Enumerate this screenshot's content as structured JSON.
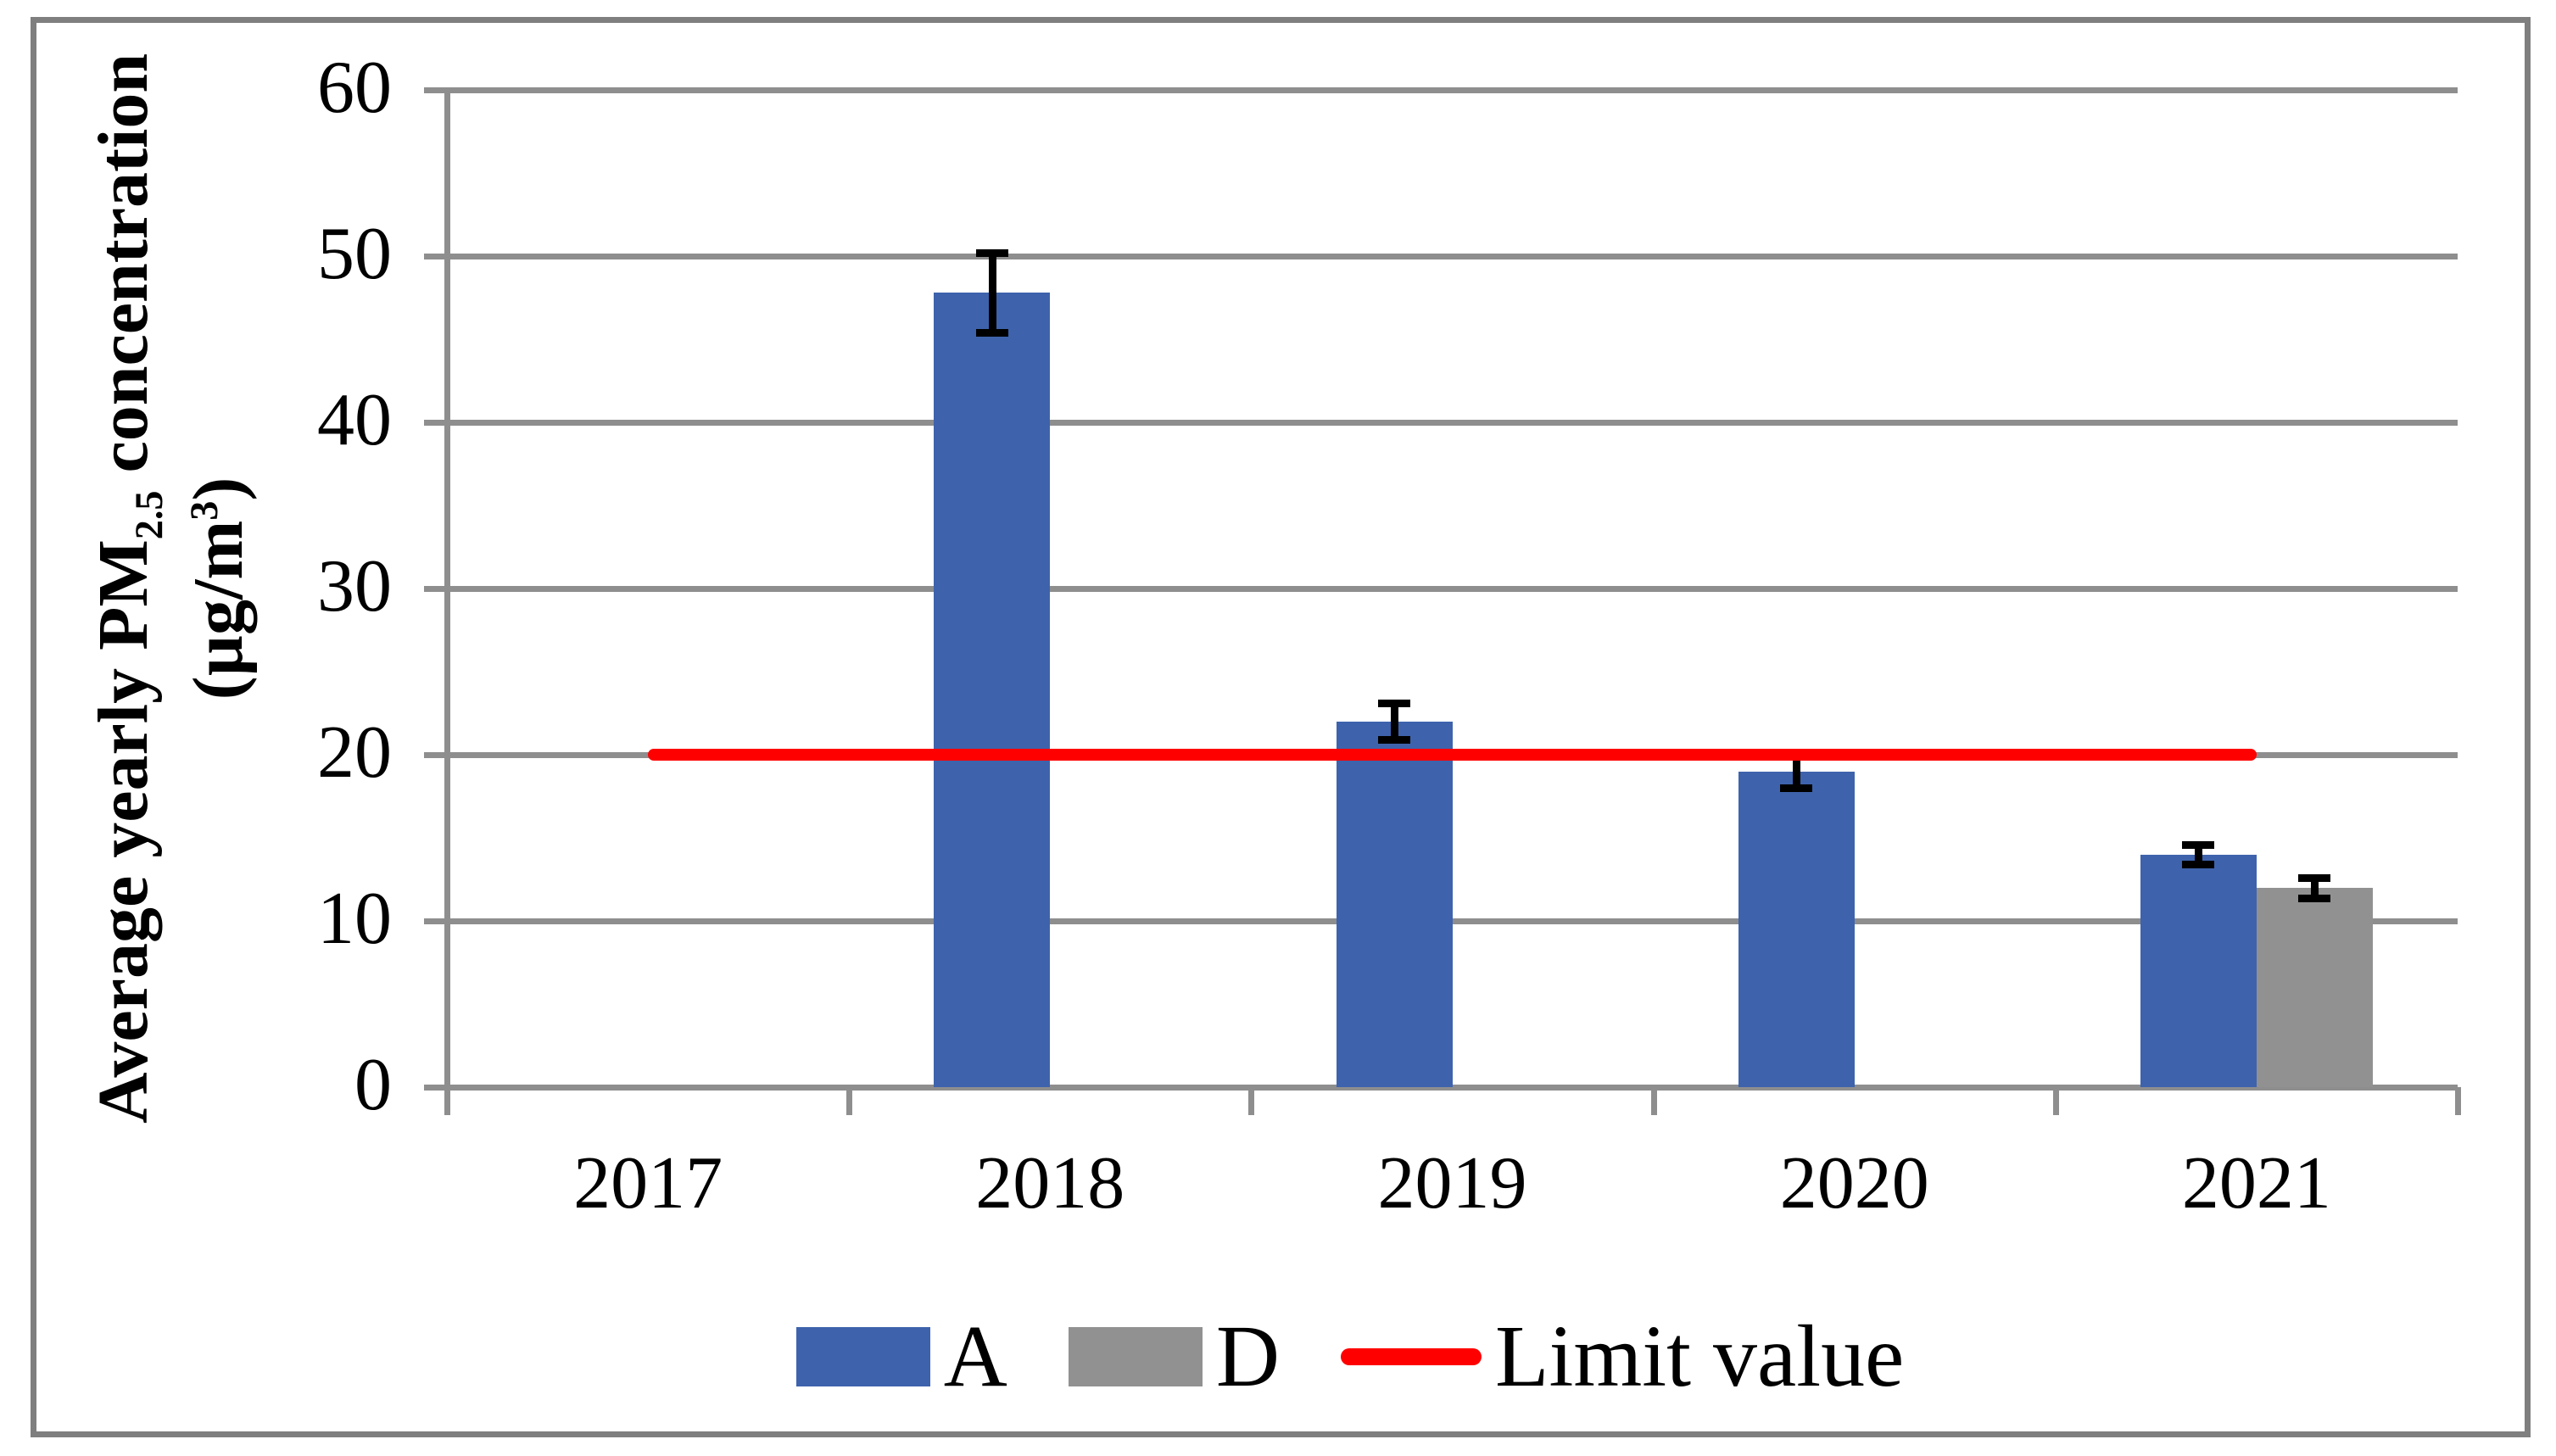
{
  "figure": {
    "y_axis": {
      "title": {
        "pre": "Average yearly PM",
        "sub": "2.5",
        "mid": " concentration",
        "unit_pre": "(µg/m",
        "sup": "3",
        "unit_post": ")"
      }
    },
    "legend": [
      {
        "label": "A",
        "swatch": "#3E63AC",
        "type": "box"
      },
      {
        "label": "D",
        "swatch": "#919191",
        "type": "box"
      },
      {
        "label": "Limit value",
        "swatch": "#FF0000",
        "type": "line"
      }
    ]
  },
  "colors": {
    "series_a_blue": "#3E63AC",
    "series_d_gray": "#919191",
    "limit_red": "#FF0000",
    "gridline_gray": "#8E8E8E",
    "border_gray": "#7F7F7F",
    "error_bar_black": "#000000"
  },
  "chart_data": {
    "type": "bar",
    "title": "",
    "categories": [
      "2017",
      "2018",
      "2019",
      "2020",
      "2021"
    ],
    "series": [
      {
        "name": "A",
        "color": "#3E63AC",
        "values": [
          null,
          47.8,
          22,
          19,
          14
        ],
        "errors": [
          null,
          2.4,
          1.1,
          1.0,
          0.6
        ]
      },
      {
        "name": "D",
        "color": "#919191",
        "values": [
          null,
          null,
          null,
          null,
          12
        ],
        "errors": [
          null,
          null,
          null,
          null,
          0.6
        ]
      }
    ],
    "limit_line": {
      "name": "Limit value",
      "value": 20,
      "color": "#FF0000",
      "spans_categories": [
        "2017",
        "2021"
      ]
    },
    "error_bars": true,
    "xlabel": "",
    "ylabel": "Average yearly PM2.5 concentration (µg/m3)",
    "ylim": [
      0,
      60
    ],
    "yticks": [
      0,
      10,
      20,
      30,
      40,
      50,
      60
    ],
    "grid": true,
    "legend_position": "bottom"
  }
}
